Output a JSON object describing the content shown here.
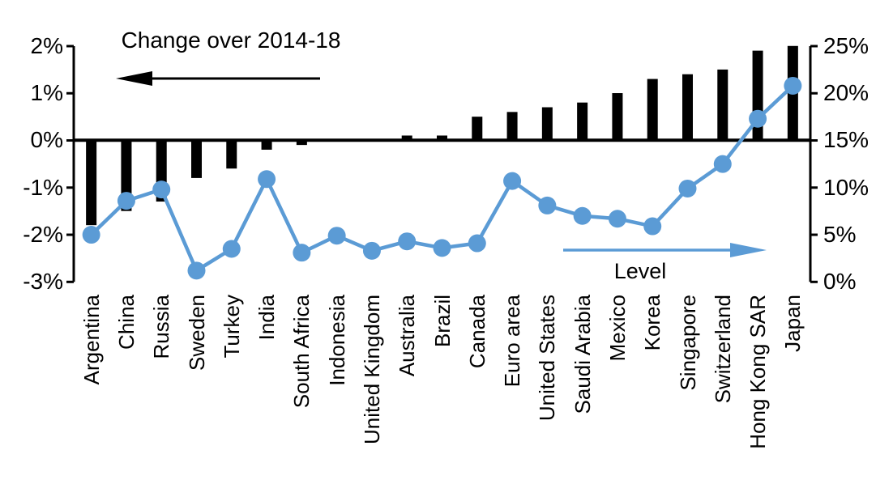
{
  "chart_data": {
    "type": "combo-bar-line",
    "title": "",
    "categories": [
      "Argentina",
      "China",
      "Russia",
      "Sweden",
      "Turkey",
      "India",
      "South Africa",
      "Indonesia",
      "United Kingdom",
      "Australia",
      "Brazil",
      "Canada",
      "Euro area",
      "United States",
      "Saudi Arabia",
      "Mexico",
      "Korea",
      "Singapore",
      "Switzerland",
      "Hong Kong SAR",
      "Japan"
    ],
    "series": [
      {
        "name": "Change over 2014-18",
        "type": "bar",
        "axis": "left",
        "values": [
          -1.8,
          -1.5,
          -1.3,
          -0.8,
          -0.6,
          -0.2,
          -0.1,
          0.0,
          0.0,
          0.1,
          0.1,
          0.5,
          0.6,
          0.7,
          0.8,
          1.0,
          1.3,
          1.4,
          1.5,
          1.9,
          2.0
        ],
        "color": "#000000"
      },
      {
        "name": "Level",
        "type": "line",
        "axis": "right",
        "values": [
          5.0,
          8.6,
          9.8,
          1.2,
          3.5,
          10.9,
          3.1,
          4.9,
          3.3,
          4.3,
          3.6,
          4.1,
          10.7,
          8.1,
          7.0,
          6.7,
          5.9,
          9.9,
          12.5,
          17.3,
          20.8
        ],
        "color": "#5B9BD5"
      }
    ],
    "left_axis": {
      "unit": "%",
      "range": [
        -3,
        2
      ],
      "ticks": [
        "2%",
        "1%",
        "0%",
        "-1%",
        "-2%",
        "-3%"
      ]
    },
    "right_axis": {
      "unit": "%",
      "range": [
        0,
        25
      ],
      "ticks": [
        "25%",
        "20%",
        "15%",
        "10%",
        "5%",
        "0%"
      ]
    },
    "annotations": {
      "change_label": "Change over 2014-18",
      "level_label": "Level",
      "change_arrow_direction": "left",
      "level_arrow_direction": "right"
    },
    "layout": {
      "grid": false,
      "zero_line_left_axis": true,
      "bars_hang_from_zero_line": true
    }
  },
  "colors": {
    "bar": "#000000",
    "line": "#5B9BD5",
    "axis": "#000000",
    "text": "#000000",
    "background": "#ffffff"
  }
}
